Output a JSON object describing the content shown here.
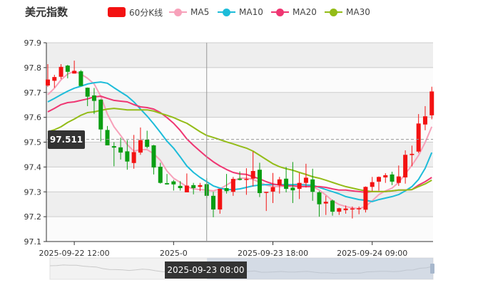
{
  "title": "美元指数",
  "legend": [
    {
      "label": "60分K线",
      "color": "#f31212",
      "type": "rect"
    },
    {
      "label": "MA5",
      "color": "#f7a1ba",
      "type": "line"
    },
    {
      "label": "MA10",
      "color": "#1dbcd9",
      "type": "line"
    },
    {
      "label": "MA20",
      "color": "#ef3672",
      "type": "line"
    },
    {
      "label": "MA30",
      "color": "#93bc17",
      "type": "line"
    }
  ],
  "crosshair": {
    "price_label": "97.511",
    "time_label": "2025-09-23 08:00",
    "candle_index": 24,
    "price": 97.511
  },
  "chart_data": {
    "type": "candlestick",
    "ylim": [
      97.1,
      97.9
    ],
    "yticks": [
      "97.9",
      "97.8",
      "97.7",
      "97.6",
      "97.5",
      "97.4",
      "97.3",
      "97.2",
      "97.1"
    ],
    "xtick_labels": [
      {
        "index": 4,
        "label": "2025-09-22 12:00"
      },
      {
        "index": 19,
        "label": "2025-0"
      },
      {
        "index": 34,
        "label": "2025-09-23 18:00"
      },
      {
        "index": 49,
        "label": "2025-09-24 09:00"
      }
    ],
    "grid": true,
    "up_color": "#f31212",
    "down_color": "#0a9e12",
    "ohlc": [
      [
        97.728,
        97.752,
        97.814,
        97.723
      ],
      [
        97.747,
        97.762,
        97.771,
        97.719
      ],
      [
        97.763,
        97.803,
        97.814,
        97.754
      ],
      [
        97.808,
        97.783,
        97.811,
        97.757
      ],
      [
        97.776,
        97.787,
        97.828,
        97.776
      ],
      [
        97.785,
        97.726,
        97.79,
        97.726
      ],
      [
        97.719,
        97.683,
        97.72,
        97.645
      ],
      [
        97.688,
        97.666,
        97.718,
        97.613
      ],
      [
        97.671,
        97.551,
        97.673,
        97.503
      ],
      [
        97.549,
        97.487,
        97.565,
        97.487
      ],
      [
        97.484,
        97.478,
        97.5,
        97.403
      ],
      [
        97.479,
        97.458,
        97.518,
        97.43
      ],
      [
        97.463,
        97.422,
        97.508,
        97.389
      ],
      [
        97.416,
        97.46,
        97.529,
        97.393
      ],
      [
        97.458,
        97.508,
        97.559,
        97.449
      ],
      [
        97.51,
        97.481,
        97.546,
        97.475
      ],
      [
        97.487,
        97.398,
        97.489,
        97.37
      ],
      [
        97.401,
        97.336,
        97.417,
        97.333
      ],
      [
        97.335,
        97.33,
        97.372,
        97.329
      ],
      [
        97.342,
        97.33,
        97.348,
        97.305
      ],
      [
        97.324,
        97.315,
        97.343,
        97.305
      ],
      [
        97.298,
        97.325,
        97.374,
        97.298
      ],
      [
        97.327,
        97.315,
        97.336,
        97.29
      ],
      [
        97.32,
        97.327,
        97.336,
        97.303
      ],
      [
        97.331,
        97.284,
        97.355,
        97.274
      ],
      [
        97.284,
        97.229,
        97.3,
        97.198
      ],
      [
        97.229,
        97.312,
        97.312,
        97.212
      ],
      [
        97.315,
        97.303,
        97.372,
        97.293
      ],
      [
        97.3,
        97.352,
        97.36,
        97.284
      ],
      [
        97.353,
        97.348,
        97.382,
        97.346
      ],
      [
        97.349,
        97.352,
        97.395,
        97.288
      ],
      [
        97.353,
        97.384,
        97.462,
        97.322
      ],
      [
        97.389,
        97.295,
        97.417,
        97.279
      ],
      [
        97.298,
        97.3,
        97.3,
        97.223
      ],
      [
        97.301,
        97.319,
        97.376,
        97.255
      ],
      [
        97.327,
        97.35,
        97.36,
        97.293
      ],
      [
        97.353,
        97.312,
        97.4,
        97.298
      ],
      [
        97.317,
        97.306,
        97.42,
        97.255
      ],
      [
        97.312,
        97.336,
        97.376,
        97.271
      ],
      [
        97.336,
        97.357,
        97.413,
        97.317
      ],
      [
        97.35,
        97.3,
        97.393,
        97.264
      ],
      [
        97.298,
        97.25,
        97.303,
        97.2
      ],
      [
        97.253,
        97.26,
        97.284,
        97.207
      ],
      [
        97.265,
        97.22,
        97.269,
        97.204
      ],
      [
        97.22,
        97.234,
        97.236,
        97.207
      ],
      [
        97.226,
        97.233,
        97.245,
        97.212
      ],
      [
        97.231,
        97.233,
        97.241,
        97.193
      ],
      [
        97.231,
        97.234,
        97.241,
        97.21
      ],
      [
        97.228,
        97.32,
        97.322,
        97.217
      ],
      [
        97.32,
        97.339,
        97.36,
        97.303
      ],
      [
        97.341,
        97.36,
        97.362,
        97.305
      ],
      [
        97.358,
        97.367,
        97.375,
        97.336
      ],
      [
        97.37,
        97.341,
        97.381,
        97.327
      ],
      [
        97.336,
        97.362,
        97.406,
        97.324
      ],
      [
        97.358,
        97.449,
        97.467,
        97.333
      ],
      [
        97.448,
        97.453,
        97.486,
        97.403
      ],
      [
        97.462,
        97.575,
        97.613,
        97.456
      ],
      [
        97.571,
        97.604,
        97.645,
        97.548
      ],
      [
        97.608,
        97.704,
        97.723,
        97.592
      ]
    ],
    "series": [
      {
        "name": "MA5",
        "values": [
          97.691,
          97.717,
          97.751,
          97.774,
          97.785,
          97.774,
          97.757,
          97.734,
          97.685,
          97.613,
          97.562,
          97.527,
          97.49,
          97.464,
          97.47,
          97.47,
          97.453,
          97.427,
          97.384,
          97.355,
          97.338,
          97.321,
          97.312,
          97.309,
          97.307,
          97.304,
          97.312,
          97.327,
          97.344,
          97.355,
          97.355,
          97.35,
          97.338,
          97.327,
          97.321,
          97.321,
          97.324,
          97.329,
          97.332,
          97.329,
          97.321,
          97.307,
          97.287,
          97.264,
          97.249,
          97.241,
          97.235,
          97.232,
          97.241,
          97.264,
          97.289,
          97.304,
          97.315,
          97.338,
          97.372,
          97.407,
          97.447,
          97.499,
          97.562
        ]
      },
      {
        "name": "MA10",
        "values": [
          97.662,
          97.676,
          97.691,
          97.705,
          97.717,
          97.725,
          97.734,
          97.739,
          97.742,
          97.737,
          97.719,
          97.702,
          97.685,
          97.662,
          97.633,
          97.605,
          97.573,
          97.539,
          97.504,
          97.476,
          97.441,
          97.404,
          97.378,
          97.358,
          97.341,
          97.324,
          97.315,
          97.309,
          97.309,
          97.312,
          97.318,
          97.324,
          97.327,
          97.329,
          97.329,
          97.329,
          97.329,
          97.329,
          97.329,
          97.327,
          97.327,
          97.318,
          97.309,
          97.301,
          97.292,
          97.281,
          97.275,
          97.269,
          97.266,
          97.261,
          97.269,
          97.275,
          97.281,
          97.289,
          97.304,
          97.321,
          97.35,
          97.395,
          97.458
        ]
      },
      {
        "name": "MA20",
        "values": [
          97.622,
          97.636,
          97.651,
          97.659,
          97.662,
          97.668,
          97.674,
          97.682,
          97.685,
          97.676,
          97.668,
          97.665,
          97.662,
          97.651,
          97.642,
          97.639,
          97.633,
          97.619,
          97.599,
          97.576,
          97.547,
          97.513,
          97.487,
          97.464,
          97.441,
          97.421,
          97.404,
          97.39,
          97.378,
          97.372,
          97.37,
          97.361,
          97.352,
          97.341,
          97.332,
          97.327,
          97.324,
          97.324,
          97.321,
          97.321,
          97.321,
          97.321,
          97.318,
          97.312,
          97.307,
          97.307,
          97.304,
          97.301,
          97.298,
          97.301,
          97.301,
          97.301,
          97.304,
          97.307,
          97.307,
          97.309,
          97.327,
          97.341,
          97.358
        ]
      },
      {
        "name": "MA30",
        "values": [
          97.542,
          97.55,
          97.562,
          97.579,
          97.593,
          97.608,
          97.619,
          97.622,
          97.628,
          97.633,
          97.636,
          97.633,
          97.63,
          97.63,
          97.63,
          97.63,
          97.625,
          97.616,
          97.608,
          97.599,
          97.587,
          97.576,
          97.559,
          97.542,
          97.527,
          97.519,
          97.51,
          97.501,
          97.493,
          97.484,
          97.476,
          97.464,
          97.447,
          97.43,
          97.413,
          97.401,
          97.393,
          97.387,
          97.378,
          97.37,
          97.361,
          97.355,
          97.347,
          97.338,
          97.329,
          97.321,
          97.315,
          97.309,
          97.304,
          97.301,
          97.301,
          97.301,
          97.304,
          97.307,
          97.307,
          97.309,
          97.321,
          97.332,
          97.347
        ]
      }
    ]
  },
  "datazoom": {
    "start_percent": 41,
    "end_percent": 100
  }
}
